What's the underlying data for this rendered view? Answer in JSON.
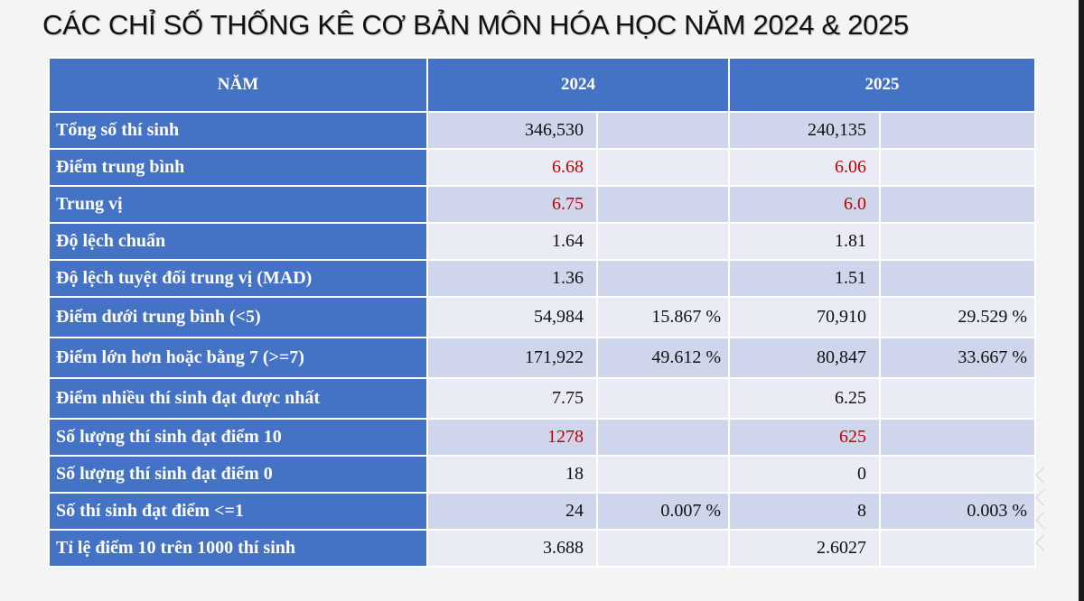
{
  "title": "CÁC CHỈ SỐ THỐNG KÊ CƠ BẢN MÔN HÓA HỌC NĂM 2024 & 2025",
  "table": {
    "headers": {
      "label": "NĂM",
      "year1": "2024",
      "year2": "2025"
    },
    "rows": [
      {
        "label": "Tổng số thí sinh",
        "v2024": "346,530",
        "p2024": "",
        "v2025": "240,135",
        "p2025": "",
        "highlight": false
      },
      {
        "label": "Điểm trung bình",
        "v2024": "6.68",
        "p2024": "",
        "v2025": "6.06",
        "p2025": "",
        "highlight": true
      },
      {
        "label": "Trung vị",
        "v2024": "6.75",
        "p2024": "",
        "v2025": "6.0",
        "p2025": "",
        "highlight": true
      },
      {
        "label": "Độ lệch chuẩn",
        "v2024": "1.64",
        "p2024": "",
        "v2025": "1.81",
        "p2025": "",
        "highlight": false
      },
      {
        "label": "Độ lệch tuyệt đối trung vị (MAD)",
        "v2024": "1.36",
        "p2024": "",
        "v2025": "1.51",
        "p2025": "",
        "highlight": false
      },
      {
        "label": "Điểm dưới trung bình (<5)",
        "v2024": "54,984",
        "p2024": "15.867 %",
        "v2025": "70,910",
        "p2025": "29.529 %",
        "highlight": false
      },
      {
        "label": "Điểm lớn hơn hoặc bằng 7 (>=7)",
        "v2024": "171,922",
        "p2024": "49.612 %",
        "v2025": "80,847",
        "p2025": "33.667 %",
        "highlight": false
      },
      {
        "label": "Điểm nhiều thí sinh đạt được nhất",
        "v2024": "7.75",
        "p2024": "",
        "v2025": "6.25",
        "p2025": "",
        "highlight": false
      },
      {
        "label": "Số lượng thí sinh đạt điểm 10",
        "v2024": "1278",
        "p2024": "",
        "v2025": "625",
        "p2025": "",
        "highlight": true
      },
      {
        "label": "Số lượng thí sinh đạt điểm 0",
        "v2024": "18",
        "p2024": "",
        "v2025": "0",
        "p2025": "",
        "highlight": false
      },
      {
        "label": "Số thí sinh đạt điểm <=1",
        "v2024": "24",
        "p2024": "0.007 %",
        "v2025": "8",
        "p2025": "0.003 %",
        "highlight": false
      },
      {
        "label": "Tỉ lệ điểm 10 trên 1000 thí sinh",
        "v2024": "3.688",
        "p2024": "",
        "v2025": "2.6027",
        "p2025": "",
        "highlight": false
      }
    ]
  },
  "colors": {
    "header_blue": "#4472c4",
    "row_dark": "#cfd5ea",
    "row_light": "#e9ebf5",
    "highlight_red": "#c00000"
  }
}
